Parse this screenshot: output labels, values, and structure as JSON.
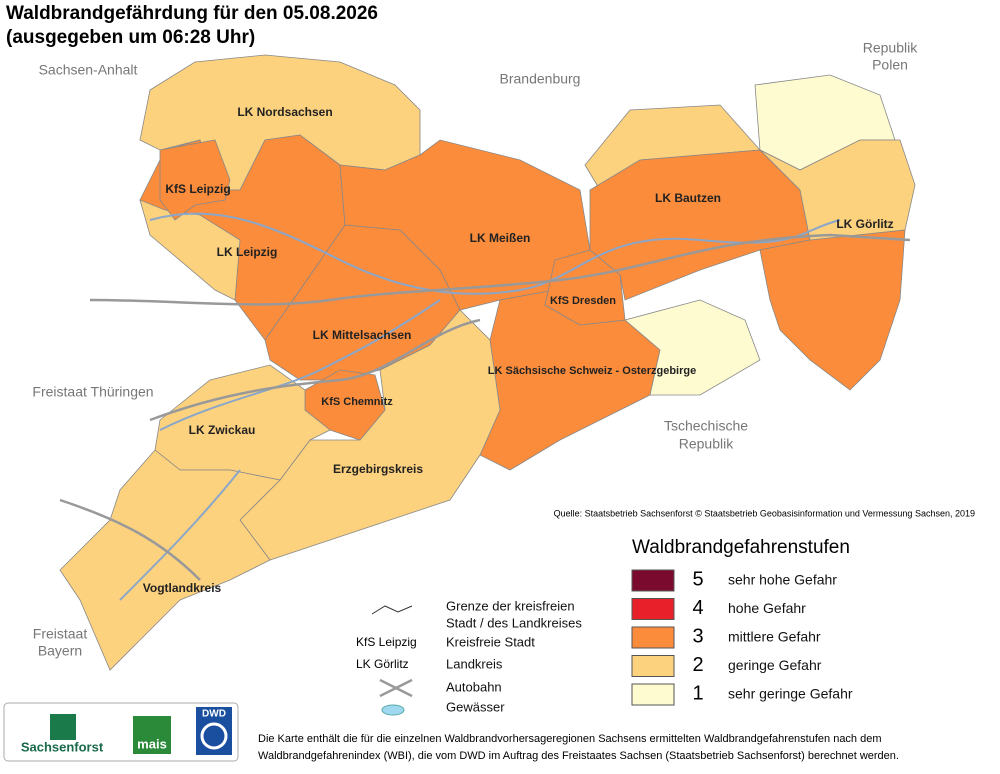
{
  "title": "Waldbrandgefährdung  für den  05.08.2026",
  "subtitle": "(ausgegeben um 06:28 Uhr)",
  "neighbors": [
    {
      "lines": [
        "Sachsen-Anhalt"
      ]
    },
    {
      "lines": [
        "Brandenburg"
      ]
    },
    {
      "lines": [
        "Republik",
        "Polen"
      ]
    },
    {
      "lines": [
        "Freistaat Thüringen"
      ]
    },
    {
      "lines": [
        "Tschechische",
        "Republik"
      ]
    },
    {
      "lines": [
        "Freistaat",
        "Bayern"
      ]
    }
  ],
  "areas": [
    {
      "label": "LK Nordsachsen",
      "level": 2
    },
    {
      "label": "LK Leipzig",
      "level": 3
    },
    {
      "level": 2
    },
    {
      "label": "KfS Leipzig",
      "level": 3
    },
    {
      "label": "LK Mittelsachsen",
      "level": 3
    },
    {
      "label": "LK Meißen",
      "level": 3
    },
    {
      "level": 2
    },
    {
      "label": "LK Bautzen",
      "level": 3
    },
    {
      "level": 1
    },
    {
      "label": "LK Görlitz",
      "level": 2
    },
    {
      "level": 3
    },
    {
      "label": "LK Sächsische Schweiz - Osterzgebirge",
      "level": 3
    },
    {
      "level": 1
    },
    {
      "label": "KfS Dresden",
      "level": 3
    },
    {
      "label": "Erzgebirgskreis",
      "level": 2
    },
    {
      "label": "KfS Chemnitz",
      "level": 3
    },
    {
      "label": "LK Zwickau",
      "level": 2
    },
    {
      "label": "Vogtlandkreis",
      "level": 2
    }
  ],
  "source": "Quelle: Staatsbetrieb Sachsenforst  © Staatsbetrieb Geobasisinformation und Vermessung Sachsen, 2019",
  "legend": {
    "title": "Waldbrandgefahrenstufen",
    "levels": [
      {
        "level": 5,
        "label": "sehr hohe Gefahr",
        "color": "#7a0a2e"
      },
      {
        "level": 4,
        "label": "hohe Gefahr",
        "color": "#e8202a"
      },
      {
        "level": 3,
        "label": "mittlere Gefahr",
        "color": "#fb8c3c"
      },
      {
        "level": 2,
        "label": "geringe Gefahr",
        "color": "#fdd27f"
      },
      {
        "level": 1,
        "label": "sehr geringe Gefahr",
        "color": "#fefbd0"
      }
    ]
  },
  "key": {
    "boundary": [
      "Grenze der kreisfreien",
      "Stadt / des Landkreises"
    ],
    "city_example": "KfS Leipzig",
    "city": "Kreisfreie Stadt",
    "district_example": "LK Görlitz",
    "district": "Landkreis",
    "motorway": "Autobahn",
    "water": "Gewässer"
  },
  "logos": [
    "Sachsenforst",
    "mais",
    "DWD"
  ],
  "footnote": [
    "Die Karte enthält die für die einzelnen Waldbrandvorhersageregionen Sachsens ermittelten Waldbrandgefahrenstufen nach dem",
    "Waldbrandgefahrenindex (WBI), die vom DWD im Auftrag des Freistaates Sachsen (Staatsbetrieb Sachsenforst) berechnet werden."
  ]
}
